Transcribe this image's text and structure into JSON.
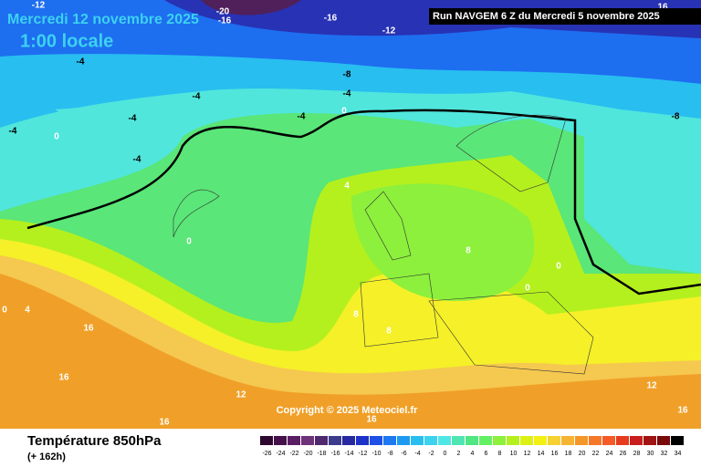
{
  "header": {
    "title": "Mercredi 12 novembre 2025",
    "time": "1:00 locale",
    "run": "Run NAVGEM 6 Z du Mercredi 5 novembre 2025"
  },
  "map": {
    "contour_labels": [
      -12,
      -20,
      -16,
      -16,
      -12,
      16,
      -4,
      -8,
      -4,
      -4,
      -4,
      -4,
      0,
      -8,
      -4,
      0,
      -4,
      4,
      0,
      8,
      0,
      0,
      0,
      4,
      8,
      8,
      16,
      16,
      12,
      12,
      16,
      16,
      16
    ],
    "copyright": "Copyright © 2025 Meteociel.fr"
  },
  "footer": {
    "field": "Température 850hPa",
    "lead": "(+ 162h)"
  },
  "legend": {
    "labels": [
      -26,
      -24,
      -22,
      -20,
      -18,
      -16,
      -14,
      -12,
      -10,
      -8,
      -6,
      -4,
      -2,
      0,
      2,
      4,
      6,
      8,
      10,
      12,
      14,
      16,
      18,
      20,
      22,
      24,
      26,
      28,
      30,
      32,
      34
    ],
    "colors": [
      "#2d0a2d",
      "#46104b",
      "#5a1e64",
      "#6e3278",
      "#50286e",
      "#3c3c8c",
      "#2828a0",
      "#1e32c8",
      "#1e50e6",
      "#1e78f0",
      "#1e9bf0",
      "#28bef0",
      "#3cd2f0",
      "#50e6e6",
      "#50e6b4",
      "#50e682",
      "#64f064",
      "#8cf03c",
      "#b4f01e",
      "#dcf014",
      "#f5f014",
      "#f5d232",
      "#f5b432",
      "#f59628",
      "#f57828",
      "#f55a28",
      "#e63c1e",
      "#c81e1e",
      "#a01414",
      "#780a0a",
      "#000000"
    ]
  }
}
